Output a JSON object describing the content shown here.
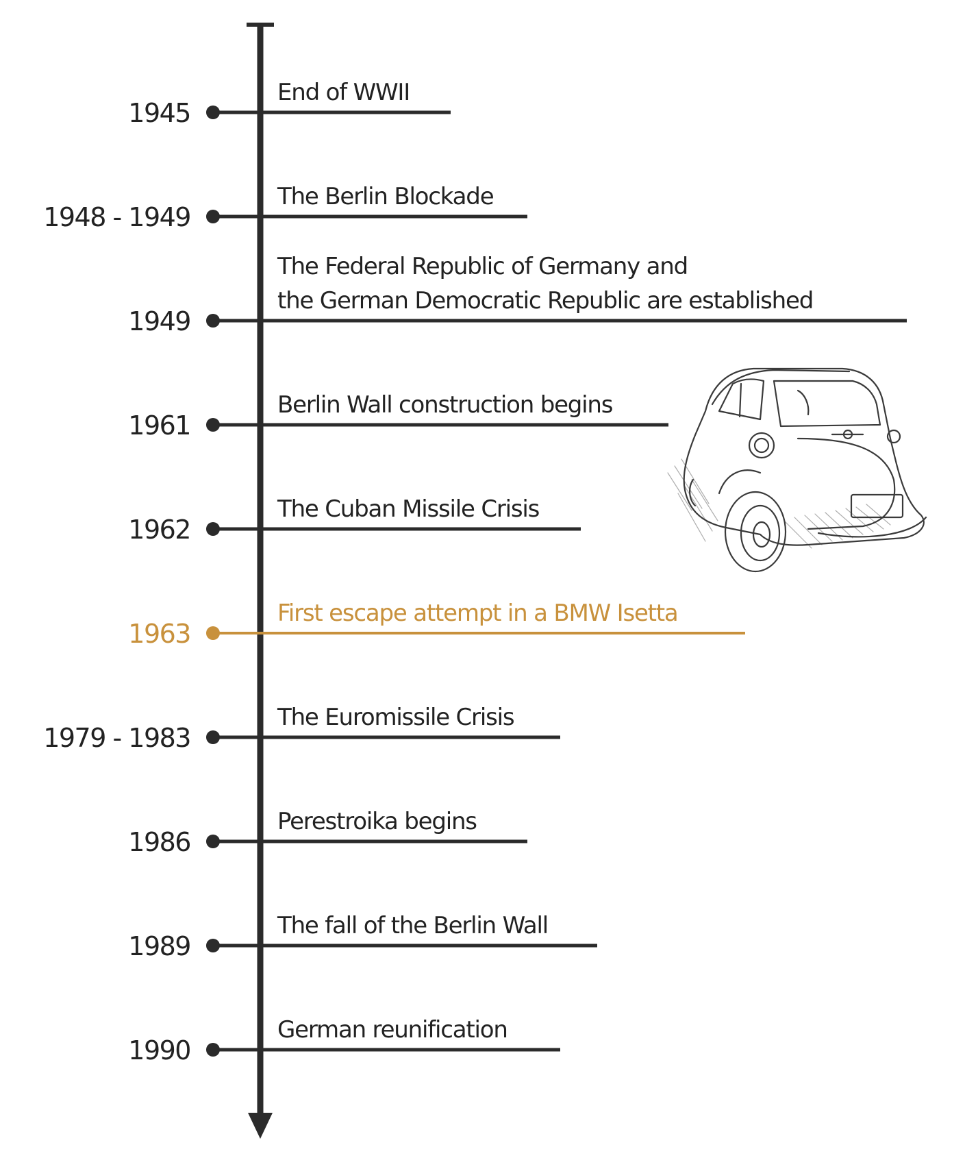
{
  "colors": {
    "ink": "#2b2b2b",
    "highlight": "#c8913c"
  },
  "events": [
    {
      "year": "1945",
      "lines": [
        "End of WWII"
      ],
      "highlight": false
    },
    {
      "year": "1948 - 1949",
      "lines": [
        "The Berlin Blockade"
      ],
      "highlight": false
    },
    {
      "year": "1949",
      "lines": [
        "The Federal Republic of Germany and",
        "the German Democratic Republic are established"
      ],
      "highlight": false
    },
    {
      "year": "1961",
      "lines": [
        "Berlin Wall construction begins"
      ],
      "highlight": false
    },
    {
      "year": "1962",
      "lines": [
        "The Cuban Missile Crisis"
      ],
      "highlight": false
    },
    {
      "year": "1963",
      "lines": [
        "First escape attempt in a BMW Isetta"
      ],
      "highlight": true
    },
    {
      "year": "1979 - 1983",
      "lines": [
        "The Euromissile Crisis"
      ],
      "highlight": false
    },
    {
      "year": "1986",
      "lines": [
        "Perestroika begins"
      ],
      "highlight": false
    },
    {
      "year": "1989",
      "lines": [
        "The fall of the Berlin Wall"
      ],
      "highlight": false
    },
    {
      "year": "1990",
      "lines": [
        "German reunification"
      ],
      "highlight": false
    }
  ],
  "illustration": {
    "subject": "bmw-isetta-car"
  }
}
